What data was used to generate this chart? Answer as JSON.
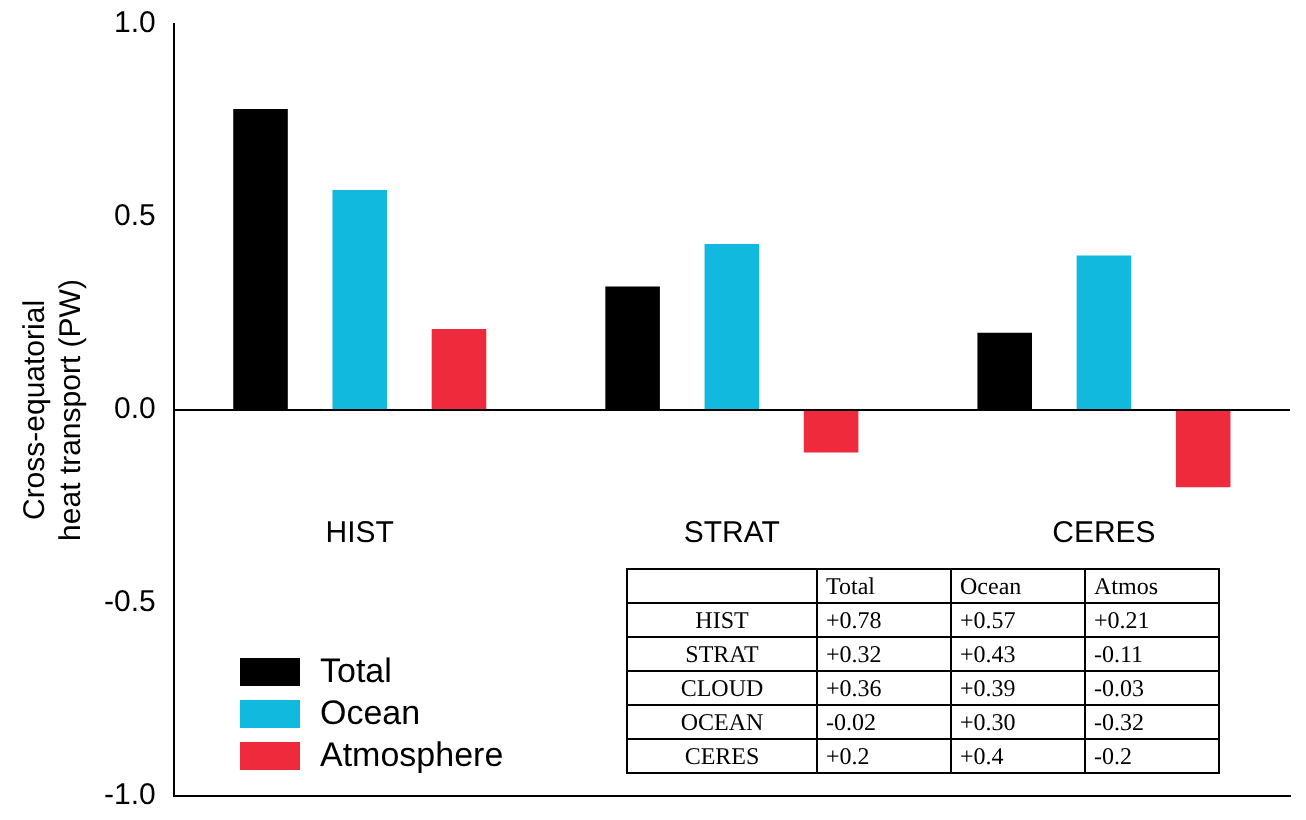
{
  "chart_data": {
    "type": "bar",
    "ylabel": "Cross-equatorial heat transport (PW)",
    "categories": [
      "HIST",
      "STRAT",
      "CERES"
    ],
    "series": [
      {
        "name": "Total",
        "color": "#000000",
        "values": [
          0.78,
          0.32,
          0.2
        ]
      },
      {
        "name": "Ocean",
        "color": "#12b9de",
        "values": [
          0.57,
          0.43,
          0.4
        ]
      },
      {
        "name": "Atmosphere",
        "color": "#ee2a3c",
        "values": [
          0.21,
          -0.11,
          -0.2
        ]
      }
    ],
    "ylim": [
      -1,
      1
    ],
    "yticks": [
      {
        "value": -1,
        "label": "-1.0"
      },
      {
        "value": -0.5,
        "label": "-0.5"
      },
      {
        "value": 0,
        "label": "0.0"
      },
      {
        "value": 0.5,
        "label": "0.5"
      },
      {
        "value": 1,
        "label": "1.0"
      }
    ],
    "ref_lines": [
      {
        "axis": "y",
        "value": 0,
        "color": "#000000"
      }
    ],
    "grid": false,
    "legend": "bottom left",
    "annotations": [
      " Total Ocean Atmos",
      "HIST +0.78 +0.57 +0.21",
      "STRAT +0.32 +0.43 -0.11",
      "CLOUD +0.36 +0.39 -0.03",
      "OCEAN -0.02 +0.30 -0.32",
      "CERES +0.2 +0.4 -0.2"
    ]
  }
}
